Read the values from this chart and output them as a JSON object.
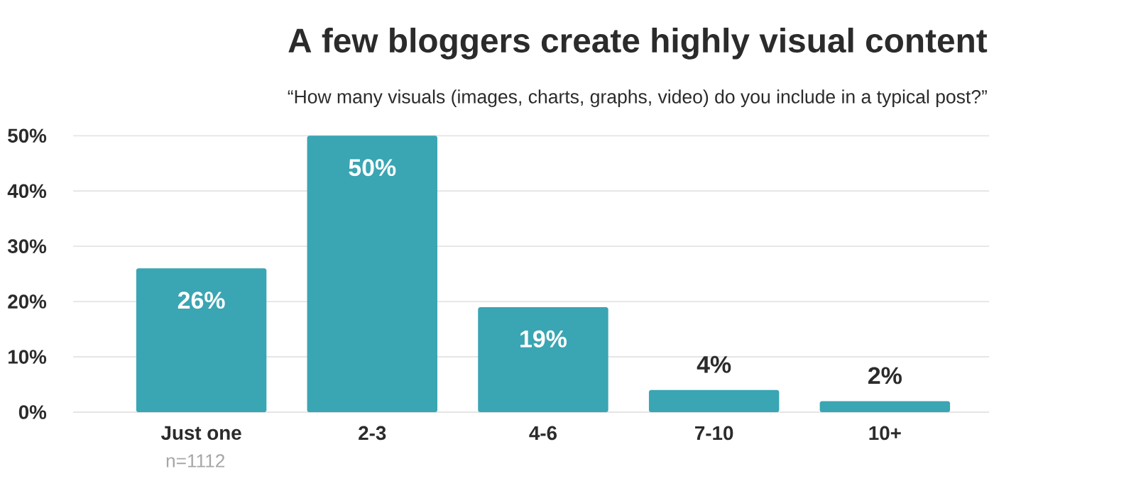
{
  "chart_data": {
    "type": "bar",
    "title": "A few bloggers create highly visual content",
    "subtitle": "“How many visuals (images, charts, graphs, video) do you include in a typical post?”",
    "categories": [
      "Just one",
      "2-3",
      "4-6",
      "7-10",
      "10+"
    ],
    "values": [
      26,
      50,
      19,
      4,
      2
    ],
    "value_labels": [
      "26%",
      "50%",
      "19%",
      "4%",
      "2%"
    ],
    "color": "#3aa5b3",
    "ylim": [
      0,
      50
    ],
    "yticks": [
      {
        "value": 0,
        "label": "0%"
      },
      {
        "value": 10,
        "label": "10%"
      },
      {
        "value": 20,
        "label": "20%"
      },
      {
        "value": 30,
        "label": "30%"
      },
      {
        "value": 40,
        "label": "40%"
      },
      {
        "value": 50,
        "label": "50%"
      }
    ],
    "grid": "y",
    "annotations": [
      "n=1112"
    ]
  }
}
